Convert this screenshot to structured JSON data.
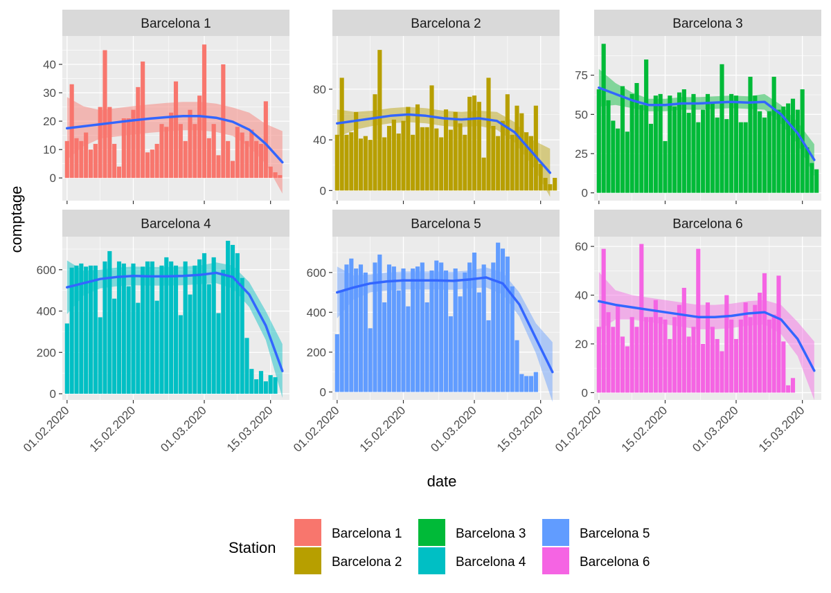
{
  "chart_data": {
    "type": "bar",
    "layout": "facet-wrap 3 columns x 2 rows, independent y scales",
    "xlabel": "date",
    "ylabel": "comptage",
    "x_tick_labels": [
      "01.02.2020",
      "15.02.2020",
      "01.03.2020",
      "15.03.2020"
    ],
    "x_tick_dates": [
      "2020-02-01",
      "2020-02-15",
      "2020-03-01",
      "2020-03-15"
    ],
    "x_range": [
      "2020-01-31",
      "2020-03-19"
    ],
    "smooth": "loess line with confidence band",
    "smooth_color": "#3366FF",
    "grid": true,
    "legend": {
      "title": "Station",
      "position": "bottom",
      "items": [
        {
          "label": "Barcelona 1",
          "color": "#F8766D"
        },
        {
          "label": "Barcelona 2",
          "color": "#B79F00"
        },
        {
          "label": "Barcelona 3",
          "color": "#00BA38"
        },
        {
          "label": "Barcelona 4",
          "color": "#00BFC4"
        },
        {
          "label": "Barcelona 5",
          "color": "#619CFF"
        },
        {
          "label": "Barcelona 6",
          "color": "#F564E3"
        }
      ]
    },
    "panels": [
      {
        "title": "Barcelona 1",
        "color": "#F8766D",
        "ylim": [
          -8,
          50
        ],
        "yticks": [
          0,
          10,
          20,
          30,
          40
        ],
        "bars": {
          "start": "2020-02-01",
          "values": [
            13,
            33,
            14,
            13,
            16,
            10,
            12,
            25,
            45,
            25,
            12,
            4,
            21,
            21,
            24,
            32,
            41,
            9,
            10,
            12,
            19,
            18,
            23,
            34,
            19,
            13,
            24,
            19,
            29,
            47,
            14,
            19,
            8,
            40,
            13,
            6,
            18,
            16,
            13,
            17,
            13,
            12,
            27,
            4,
            2,
            1
          ]
        },
        "smooth": {
          "start": "2020-02-01",
          "values": [
            17.5,
            18.2,
            18.9,
            19.6,
            20.3,
            20.9,
            21.4,
            21.8,
            21.8,
            21.2,
            19.8,
            17.0,
            12.0,
            5.5
          ],
          "step_days": 3.5
        },
        "band_half_width": [
          11,
          7,
          5,
          5,
          5,
          5,
          5,
          5,
          5,
          5,
          5,
          6,
          7,
          11
        ]
      },
      {
        "title": "Barcelona 2",
        "color": "#B79F00",
        "ylim": [
          -8,
          122
        ],
        "yticks": [
          0,
          40,
          80
        ],
        "bars": {
          "start": "2020-02-01",
          "values": [
            44,
            89,
            44,
            46,
            62,
            41,
            43,
            40,
            76,
            111,
            42,
            51,
            56,
            45,
            55,
            66,
            44,
            68,
            50,
            50,
            83,
            49,
            42,
            64,
            48,
            62,
            53,
            44,
            74,
            75,
            70,
            26,
            89,
            51,
            43,
            55,
            76,
            44,
            67,
            61,
            46,
            43,
            67,
            21,
            10,
            5,
            10
          ]
        },
        "smooth": {
          "start": "2020-02-01",
          "values": [
            53,
            55,
            57,
            59,
            60,
            59,
            57,
            56,
            57,
            55,
            46,
            30,
            14
          ],
          "step_days": 3.75
        },
        "band_half_width": [
          11,
          7,
          6,
          6,
          6,
          6,
          6,
          6,
          6,
          7,
          8,
          10,
          19
        ]
      },
      {
        "title": "Barcelona 3",
        "color": "#00BA38",
        "ylim": [
          -5,
          100
        ],
        "yticks": [
          0,
          25,
          50,
          75
        ],
        "bars": {
          "start": "2020-02-01",
          "values": [
            66,
            95,
            59,
            46,
            41,
            68,
            39,
            63,
            70,
            56,
            85,
            44,
            62,
            63,
            33,
            62,
            55,
            64,
            66,
            51,
            63,
            45,
            53,
            63,
            58,
            48,
            82,
            47,
            63,
            62,
            45,
            45,
            74,
            62,
            52,
            48,
            52,
            74,
            53,
            55,
            57,
            60,
            53,
            66,
            29,
            19,
            15
          ]
        },
        "smooth": {
          "start": "2020-02-01",
          "values": [
            67,
            63,
            59,
            56,
            56,
            57,
            57,
            57.5,
            58,
            57.5,
            58,
            50,
            38,
            21
          ],
          "step_days": 3.5
        },
        "band_half_width": [
          12,
          7,
          5,
          4,
          4,
          4,
          4,
          4,
          4,
          4,
          5,
          6,
          7,
          10
        ]
      },
      {
        "title": "Barcelona 4",
        "color": "#00BFC4",
        "ylim": [
          -30,
          760
        ],
        "yticks": [
          0,
          200,
          400,
          600
        ],
        "bars": {
          "start": "2020-02-01",
          "values": [
            340,
            610,
            620,
            630,
            615,
            620,
            620,
            370,
            640,
            690,
            460,
            640,
            630,
            520,
            630,
            440,
            615,
            640,
            640,
            450,
            620,
            660,
            640,
            620,
            380,
            640,
            480,
            620,
            650,
            680,
            530,
            660,
            390,
            600,
            740,
            720,
            680,
            560,
            270,
            120,
            70,
            110,
            60,
            90,
            80
          ]
        },
        "smooth": {
          "start": "2020-02-01",
          "values": [
            515,
            535,
            555,
            565,
            570,
            568,
            568,
            570,
            575,
            585,
            565,
            480,
            330,
            110
          ],
          "step_days": 3.5
        },
        "band_half_width": [
          130,
          60,
          45,
          45,
          45,
          45,
          45,
          45,
          45,
          50,
          55,
          60,
          70,
          130
        ]
      },
      {
        "title": "Barcelona 5",
        "color": "#619CFF",
        "ylim": [
          -40,
          780
        ],
        "yticks": [
          0,
          200,
          400,
          600
        ],
        "bars": {
          "start": "2020-02-01",
          "values": [
            290,
            510,
            640,
            670,
            620,
            640,
            600,
            320,
            650,
            690,
            450,
            640,
            630,
            510,
            620,
            430,
            620,
            630,
            650,
            450,
            610,
            660,
            650,
            610,
            380,
            620,
            480,
            600,
            650,
            700,
            500,
            640,
            360,
            650,
            750,
            720,
            680,
            530,
            260,
            90,
            80,
            80,
            100
          ]
        },
        "smooth": {
          "start": "2020-02-01",
          "values": [
            500,
            525,
            545,
            555,
            560,
            560,
            560,
            558,
            565,
            575,
            545,
            440,
            270,
            100
          ],
          "step_days": 3.5
        },
        "band_half_width": [
          130,
          60,
          45,
          45,
          45,
          45,
          45,
          45,
          45,
          50,
          55,
          60,
          75,
          150
        ]
      },
      {
        "title": "Barcelona 6",
        "color": "#F564E3",
        "ylim": [
          -3,
          64
        ],
        "yticks": [
          0,
          20,
          40,
          60
        ],
        "bars": {
          "start": "2020-02-01",
          "values": [
            27,
            59,
            33,
            27,
            36,
            23,
            19,
            31,
            27,
            61,
            31,
            31,
            38,
            31,
            30,
            22,
            31,
            36,
            43,
            23,
            27,
            59,
            20,
            37,
            27,
            22,
            17,
            40,
            30,
            22,
            30,
            37,
            31,
            36,
            41,
            49,
            30,
            32,
            48,
            21,
            3,
            6
          ]
        },
        "smooth": {
          "start": "2020-02-01",
          "values": [
            37.5,
            36,
            35,
            34,
            33,
            32,
            31,
            31,
            31.5,
            32.5,
            33,
            30,
            22,
            9
          ],
          "step_days": 3.5
        },
        "band_half_width": [
          12,
          6,
          5,
          5,
          5,
          5,
          5,
          5,
          5,
          5,
          5,
          6,
          7,
          12
        ]
      }
    ]
  }
}
